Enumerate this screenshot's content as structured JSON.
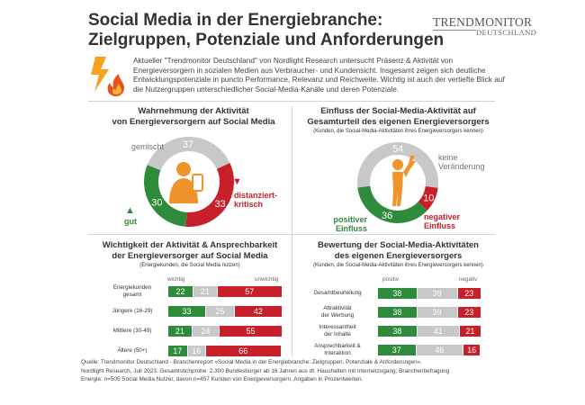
{
  "header": {
    "title_line1": "Social Media in der Energiebranche:",
    "title_line2": "Zielgruppen, Potenziale und Anforderungen",
    "logo_line1": "TRENDMONITOR",
    "logo_line2": "DEUTSCHLAND",
    "intro": "Aktueller \"Trendmonitor Deutschland\" von Nordlight Research untersucht Präsenz & Aktivität von Energieversorgern in sozialen Medien aus Verbraucher- und Kundensicht. Insgesamt zeigen sich deutliche Entwicklungspotenziale in puncto Performance, Relevanz und Reichweite. Wichtig ist auch der vertiefte Blick auf die Nutzergruppen unterschiedlicher Social-Media-Kanäle und deren Potenziale."
  },
  "colors": {
    "positive": "#2e8b3b",
    "neutral": "#c8c8c8",
    "negative": "#c8202a",
    "accent": "#f0932b"
  },
  "chart_data": [
    {
      "type": "pie",
      "title_line1": "Wahrnehmung der Aktivität",
      "title_line2": "von Energieversorgern auf Social Media",
      "labels": {
        "neutral": "gemischt",
        "negative_line1": "distanziert-",
        "negative_line2": "kritisch",
        "positive": "gut"
      },
      "values": {
        "positive": 30,
        "neutral": 37,
        "negative": 33
      }
    },
    {
      "type": "pie",
      "title_line1": "Einfluss der Social-Media-Aktivität auf",
      "title_line2": "Gesamturteil des eigenen Energieversorgers",
      "subtitle": "(Kunden, die Social-Media-Aktivitäten ihres Energieversorgers kennen)",
      "labels": {
        "neutral_line1": "keine",
        "neutral_line2": "Veränderung",
        "positive_line1": "positiver",
        "positive_line2": "Einfluss",
        "negative_line1": "negativer",
        "negative_line2": "Einfluss"
      },
      "values": {
        "positive": 36,
        "neutral": 54,
        "negative": 10
      }
    },
    {
      "type": "bar",
      "title_line1": "Wichtigkeit der Aktivität & Ansprechbarkeit",
      "title_line2": "der Energieversorger auf Social Media",
      "subtitle": "(Energiekunden, die Social Media nutzen)",
      "legend_positive": "wichtig",
      "legend_negative": "unwichtig",
      "rows": [
        {
          "label_line1": "Energiekunden",
          "label_line2": "gesamt",
          "values": [
            22,
            21,
            57
          ]
        },
        {
          "label_line1": "Jüngere (16-29)",
          "label_line2": "",
          "values": [
            33,
            25,
            42
          ]
        },
        {
          "label_line1": "Mittlere (30-49)",
          "label_line2": "",
          "values": [
            21,
            24,
            55
          ]
        },
        {
          "label_line1": "Ältere (50+)",
          "label_line2": "",
          "values": [
            17,
            16,
            66
          ]
        }
      ]
    },
    {
      "type": "bar",
      "title_line1": "Bewertung der Social-Media-Aktivitäten",
      "title_line2": "des eigenen Energieversorgers",
      "subtitle": "(Kunden, die Social-Media-Aktivitäten ihres Energieversorgers kennen)",
      "legend_positive": "positiv",
      "legend_negative": "negativ",
      "rows": [
        {
          "label_line1": "Gesamtbeurteilung",
          "label_line2": "",
          "values": [
            38,
            39,
            23
          ]
        },
        {
          "label_line1": "Attraktivität",
          "label_line2": "der Werbung",
          "values": [
            38,
            39,
            23
          ]
        },
        {
          "label_line1": "Interessantheit",
          "label_line2": "der Inhalte",
          "values": [
            38,
            41,
            21
          ]
        },
        {
          "label_line1": "Ansprechbarkeit &",
          "label_line2": "Interaktion",
          "values": [
            37,
            46,
            16
          ]
        }
      ]
    }
  ],
  "source": {
    "line1": "Quelle: Trendmonitor Deutschland - Branchenreport »Social Media in der Energiebranche: Zielgruppen, Potenziale & Anforderungen«.",
    "line2": "Nordlight Research, Juli 2023. Gesamtstichprobe: 2.300 Bundesbürger ab 16 Jahren aus dt. Haushalten mit Internetzugang; Branchenbefragung",
    "line3": "Energie: n=505 Social Media Nutzer, davon n=457 Kunden von Energieversorgern. Angaben in Prozentwerten."
  }
}
